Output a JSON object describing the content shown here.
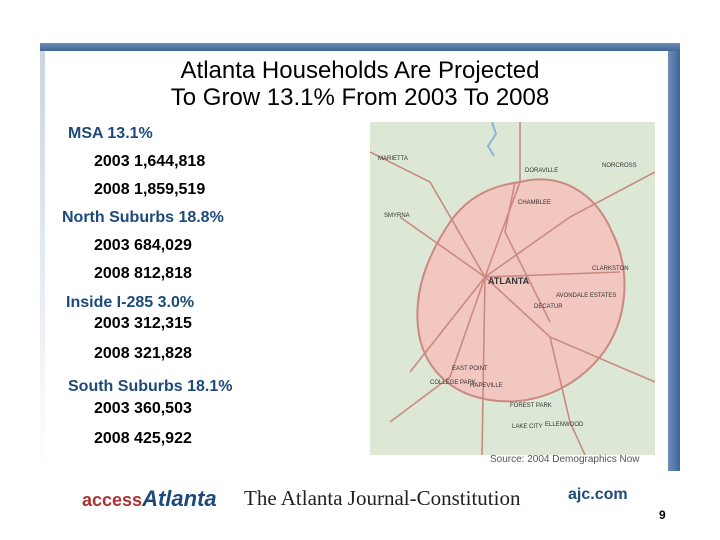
{
  "title": {
    "line1": "Atlanta Households Are Projected",
    "line2": "To Grow 13.1% From 2003 To 2008"
  },
  "stats": {
    "msa": {
      "heading": "MSA 13.1%",
      "line2003": "2003  1,644,818",
      "line2008": "2008  1,859,519"
    },
    "north": {
      "heading": "North Suburbs 18.8%",
      "line2003": "2003  684,029",
      "line2008": "2008  812,818"
    },
    "inside": {
      "heading": "Inside I-285 3.0%",
      "line2003": "2003  312,315",
      "line2008": "2008  321,828"
    },
    "south": {
      "heading": "South Suburbs 18.1%",
      "line2003": "2003  360,503",
      "line2008": "2008  425,922"
    }
  },
  "map": {
    "labels": {
      "marietta": "MARIETTA",
      "doraville": "DORAVILLE",
      "norcross": "NORCROSS",
      "chamblee": "CHAMBLEE",
      "smyrna": "SMYRNA",
      "atlanta": "ATLANTA",
      "clarkston": "CLARKSTON",
      "avondale": "AVONDALE ESTATES",
      "decatur": "DECATUR",
      "eastpoint": "EAST POINT",
      "collegepark": "COLLEGE PARK",
      "hapeville": "HAPEVILLE",
      "forestpark": "FOREST PARK",
      "lakecity": "LAKE CITY",
      "ellenwood": "ELLENWOOD"
    },
    "colors": {
      "land": "#dde7d5",
      "region": "#f2c7c0",
      "road": "#c98a82",
      "water": "#8fb3d9"
    }
  },
  "source": "Source: 2004 Demographics Now",
  "footer": {
    "access_prefix": "access",
    "access_big": "Atlanta",
    "ajc_name": "The Atlanta Journal-Constitution",
    "url": "ajc.com"
  },
  "page_number": "9"
}
